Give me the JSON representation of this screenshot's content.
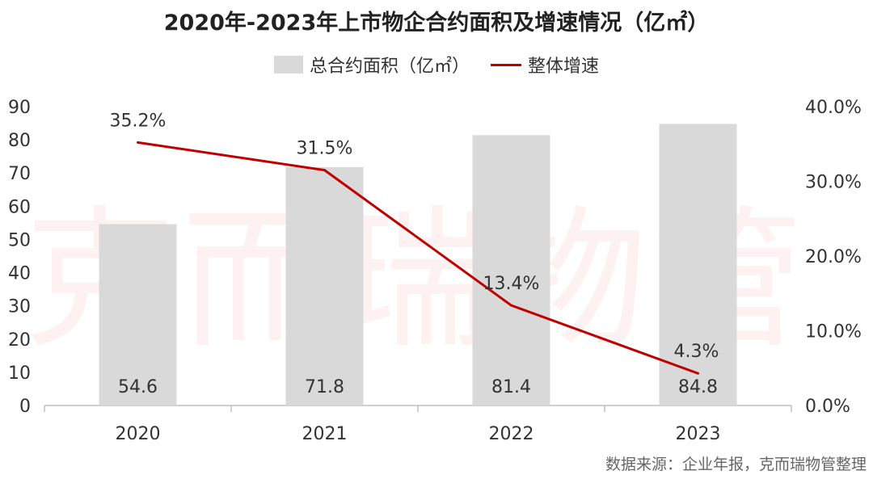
{
  "title": "2020年-2023年上市物企合约面积及增速情况（亿㎡）",
  "watermark": "克而瑞物管",
  "source": "数据来源：企业年报，克而瑞物管整理",
  "chart_data": {
    "type": "bar",
    "categories": [
      "2020",
      "2021",
      "2022",
      "2023"
    ],
    "series": [
      {
        "name": "总合约面积（亿㎡）",
        "type": "bar",
        "axis": "left",
        "values": [
          54.6,
          71.8,
          81.4,
          84.8
        ],
        "labels": [
          "54.6",
          "71.8",
          "81.4",
          "84.8"
        ],
        "color": "#d9d9d9"
      },
      {
        "name": "整体增速",
        "type": "line",
        "axis": "right",
        "values": [
          35.2,
          31.5,
          13.4,
          4.3
        ],
        "labels": [
          "35.2%",
          "31.5%",
          "13.4%",
          "4.3%"
        ],
        "color": "#c00000"
      }
    ],
    "y_left": {
      "min": 0,
      "max": 90,
      "step": 10,
      "ticks": [
        "0",
        "10",
        "20",
        "30",
        "40",
        "50",
        "60",
        "70",
        "80",
        "90"
      ]
    },
    "y_right": {
      "min": 0,
      "max": 40,
      "step": 10,
      "ticks": [
        "0.0%",
        "10.0%",
        "20.0%",
        "30.0%",
        "40.0%"
      ]
    },
    "legend_position": "top-center",
    "grid": false
  }
}
